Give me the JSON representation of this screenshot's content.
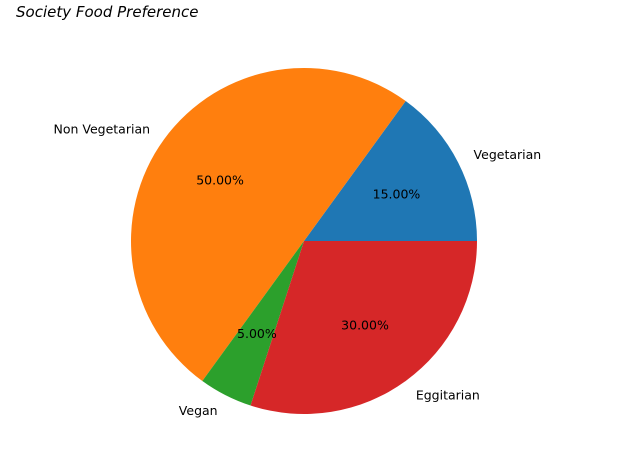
{
  "chart_data": {
    "type": "pie",
    "title": "Society Food Preference",
    "categories": [
      "Vegetarian",
      "Non Vegetarian",
      "Vegan",
      "Eggitarian"
    ],
    "values": [
      15,
      50,
      5,
      30
    ],
    "percent_labels": [
      "15.00%",
      "50.00%",
      "5.00%",
      "30.00%"
    ],
    "colors": [
      "#1f77b4",
      "#ff7f0e",
      "#2ca02c",
      "#d62728"
    ],
    "start_angle_deg": 0,
    "direction": "counterclockwise",
    "legend": "none"
  }
}
